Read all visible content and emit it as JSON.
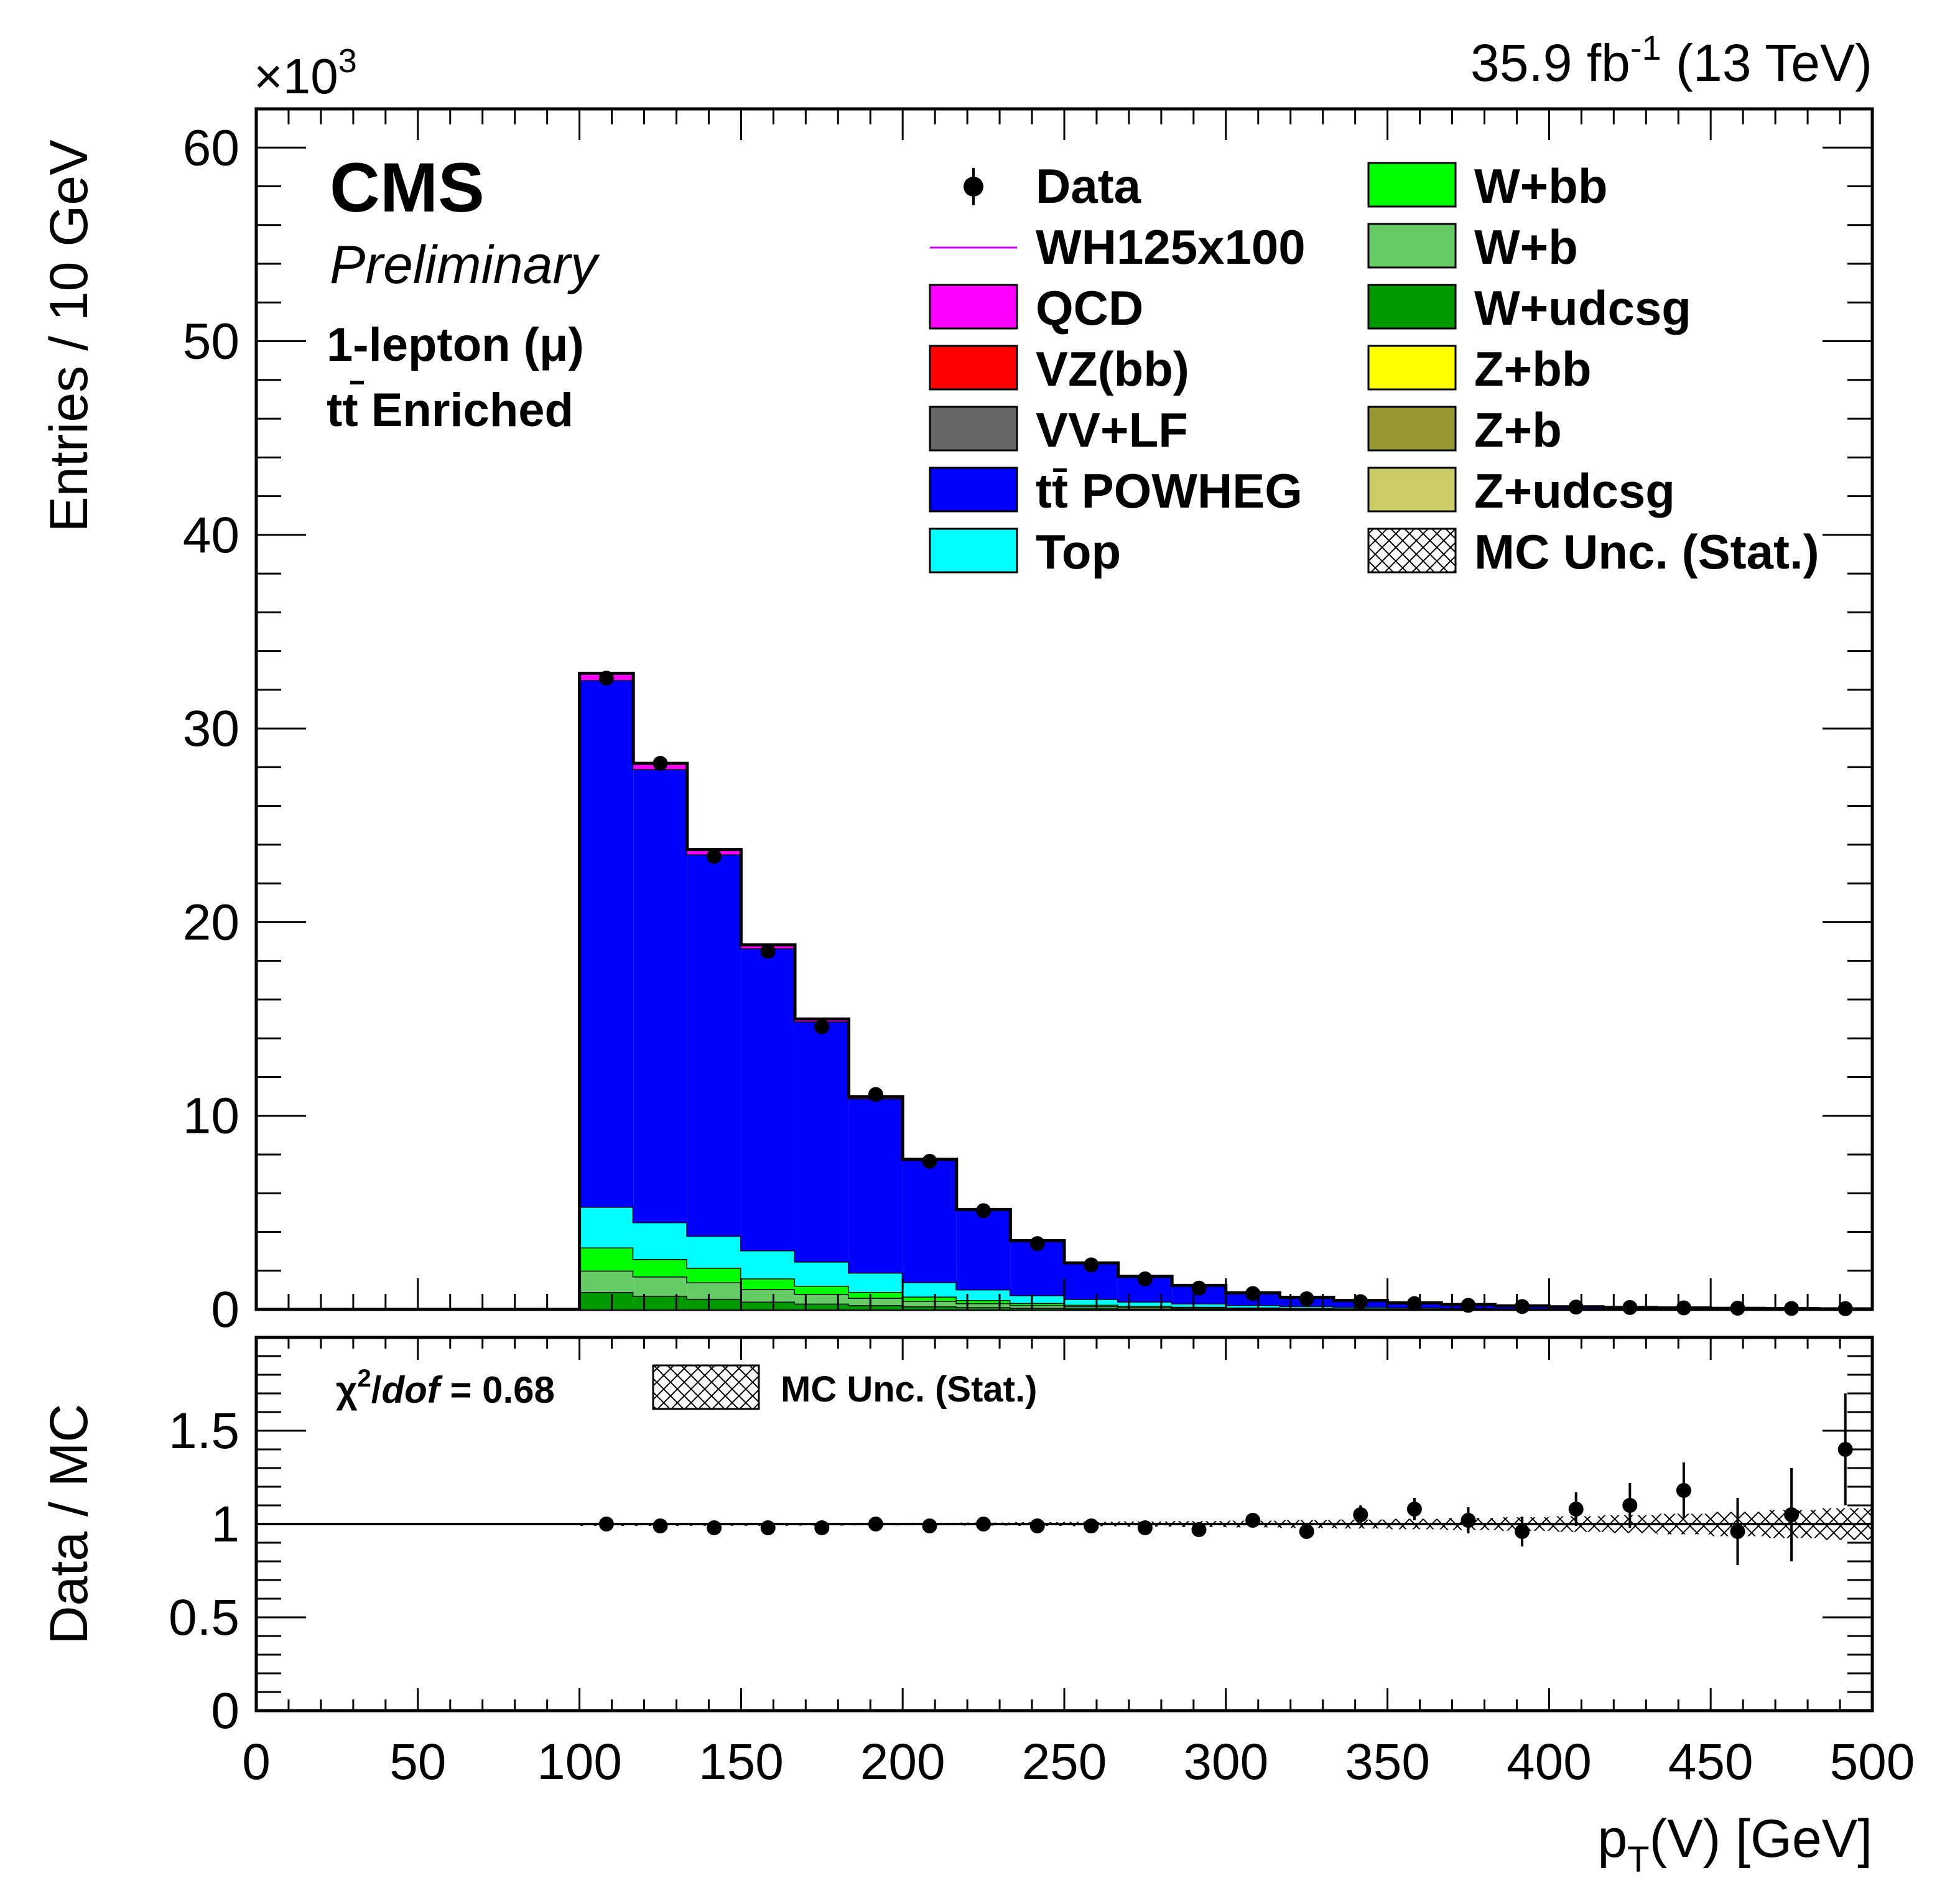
{
  "header": {
    "lumi_text": "35.9 fb",
    "lumi_sup": "-1",
    "energy_text": "(13 TeV)",
    "exponent_base": "×10",
    "exponent_sup": "3"
  },
  "labels": {
    "experiment": "CMS",
    "status": "Preliminary",
    "channel": "1-lepton (μ)",
    "region_t": "t",
    "region_tbar": "t",
    "region_rest": " Enriched"
  },
  "colors": {
    "qcd": "#ff00ff",
    "vzbb": "#ff0000",
    "vvlf": "#666666",
    "ttbar": "#0000ff",
    "top": "#00ffff",
    "wbb": "#00ff00",
    "wb": "#66cc66",
    "wudcsg": "#009900",
    "zbb": "#ffff00",
    "zb": "#999933",
    "zudcsg": "#cccc66",
    "signal_line": "#cc00ff"
  },
  "legend": {
    "col1": [
      {
        "label": "Data",
        "style": "marker",
        "color": "#000000"
      },
      {
        "label": "WH125x100",
        "style": "line",
        "color": "#cc00ff"
      },
      {
        "label": "QCD",
        "style": "box",
        "color": "#ff00ff"
      },
      {
        "label": "VZ(bb)",
        "style": "box",
        "color": "#ff0000"
      },
      {
        "label": "VV+LF",
        "style": "box",
        "color": "#666666"
      },
      {
        "label": "t",
        "label_bar": "t",
        "label_rest": " POWHEG",
        "style": "box",
        "color": "#0000ff"
      },
      {
        "label": "Top",
        "style": "box",
        "color": "#00ffff"
      }
    ],
    "col2": [
      {
        "label": "W+bb",
        "style": "box",
        "color": "#00ff00"
      },
      {
        "label": "W+b",
        "style": "box",
        "color": "#66cc66"
      },
      {
        "label": "W+udcsg",
        "style": "box",
        "color": "#009900"
      },
      {
        "label": "Z+bb",
        "style": "box",
        "color": "#ffff00"
      },
      {
        "label": "Z+b",
        "style": "box",
        "color": "#999933"
      },
      {
        "label": "Z+udcsg",
        "style": "box",
        "color": "#cccc66"
      },
      {
        "label": "MC Unc. (Stat.)",
        "style": "hatch",
        "color": "#000000"
      }
    ]
  },
  "ratio_panel": {
    "chi2_prefix": "χ",
    "chi2_sup": "2",
    "chi2_slash": "/",
    "chi2_dof": "dof",
    "chi2_value": " = 0.68",
    "unc_label": "MC Unc. (Stat.)"
  },
  "chart_data": [
    {
      "type": "bar",
      "panel": "main",
      "stacked": true,
      "xlabel_main": "p",
      "xlabel_sub": "T",
      "xlabel_rest": "(V) [GeV]",
      "ylabel": "Entries / 10 GeV",
      "y_multiplier": 1000,
      "xlim": [
        0,
        500
      ],
      "ylim": [
        0,
        62
      ],
      "x_ticks": [
        0,
        50,
        100,
        150,
        200,
        250,
        300,
        350,
        400,
        450,
        500
      ],
      "y_ticks": [
        0,
        10,
        20,
        30,
        40,
        50,
        60
      ],
      "bin_edges": [
        100,
        116.67,
        133.33,
        150,
        166.67,
        183.33,
        200,
        216.67,
        233.33,
        250,
        266.67,
        283.33,
        300,
        316.67,
        333.33,
        350,
        366.67,
        383.33,
        400,
        416.67,
        433.33,
        450,
        466.67,
        483.33,
        500
      ],
      "series": [
        {
          "name": "W+udcsg",
          "color": "#009900",
          "values": [
            0.9,
            0.7,
            0.55,
            0.4,
            0.3,
            0.22,
            0.16,
            0.12,
            0.08,
            0.06,
            0.045,
            0.035,
            0.025,
            0.02,
            0.015,
            0.01,
            0.008,
            0.006,
            0.005,
            0.004,
            0.003,
            0.002,
            0.002,
            0.001
          ]
        },
        {
          "name": "W+b",
          "color": "#66cc66",
          "values": [
            1.1,
            1.0,
            0.85,
            0.65,
            0.5,
            0.38,
            0.28,
            0.2,
            0.14,
            0.1,
            0.075,
            0.055,
            0.04,
            0.03,
            0.022,
            0.016,
            0.012,
            0.009,
            0.007,
            0.005,
            0.004,
            0.003,
            0.002,
            0.002
          ]
        },
        {
          "name": "W+bb",
          "color": "#00ff00",
          "values": [
            1.2,
            0.9,
            0.75,
            0.55,
            0.42,
            0.3,
            0.22,
            0.16,
            0.11,
            0.08,
            0.06,
            0.045,
            0.032,
            0.024,
            0.018,
            0.013,
            0.01,
            0.007,
            0.005,
            0.004,
            0.003,
            0.002,
            0.002,
            0.001
          ]
        },
        {
          "name": "Top",
          "color": "#00ffff",
          "values": [
            2.1,
            1.9,
            1.65,
            1.45,
            1.25,
            1.0,
            0.75,
            0.55,
            0.4,
            0.3,
            0.22,
            0.17,
            0.13,
            0.1,
            0.075,
            0.055,
            0.04,
            0.03,
            0.022,
            0.017,
            0.013,
            0.01,
            0.007,
            0.005
          ]
        },
        {
          "name": "tt POWHEG",
          "color": "#0000ff",
          "values": [
            27.2,
            23.4,
            19.7,
            15.6,
            12.4,
            9.0,
            6.3,
            4.1,
            2.8,
            1.85,
            1.3,
            0.93,
            0.63,
            0.45,
            0.33,
            0.24,
            0.18,
            0.13,
            0.095,
            0.07,
            0.053,
            0.04,
            0.03,
            0.023
          ]
        },
        {
          "name": "QCD",
          "color": "#ff00ff",
          "values": [
            0.35,
            0.3,
            0.25,
            0.18,
            0.13,
            0.09,
            0.05,
            0.03,
            0.02,
            0.01,
            0.008,
            0.006,
            0.004,
            0.003,
            0.002,
            0.002,
            0.001,
            0.001,
            0.001,
            0.0,
            0.0,
            0.0,
            0.0,
            0.0
          ]
        }
      ],
      "data_points": {
        "name": "Data",
        "y": [
          32.6,
          28.2,
          23.4,
          18.5,
          14.6,
          11.1,
          7.65,
          5.1,
          3.4,
          2.3,
          1.58,
          1.1,
          0.82,
          0.55,
          0.4,
          0.3,
          0.21,
          0.15,
          0.12,
          0.1,
          0.08,
          0.065,
          0.05,
          0.04
        ]
      }
    },
    {
      "type": "scatter",
      "panel": "ratio",
      "ylabel": "Data / MC",
      "xlim": [
        0,
        500
      ],
      "ylim": [
        0,
        2.0
      ],
      "x_ticks": [
        0,
        50,
        100,
        150,
        200,
        250,
        300,
        350,
        400,
        450,
        500
      ],
      "y_ticks": [
        0,
        0.5,
        1,
        1.5
      ],
      "y_tick_labels": [
        "0",
        "0.5",
        "1",
        "1.5"
      ],
      "bin_edges": [
        100,
        116.67,
        133.33,
        150,
        166.67,
        183.33,
        200,
        216.67,
        233.33,
        250,
        266.67,
        283.33,
        300,
        316.67,
        333.33,
        350,
        366.67,
        383.33,
        400,
        416.67,
        433.33,
        450,
        466.67,
        483.33,
        500
      ],
      "ratio": [
        1.0,
        0.99,
        0.98,
        0.98,
        0.98,
        1.0,
        0.99,
        1.0,
        0.99,
        0.99,
        0.98,
        0.97,
        1.02,
        0.96,
        1.05,
        1.08,
        1.02,
        0.96,
        1.08,
        1.1,
        1.18,
        0.96,
        1.05,
        1.4
      ],
      "ratio_err": [
        0.01,
        0.01,
        0.01,
        0.01,
        0.01,
        0.012,
        0.014,
        0.017,
        0.02,
        0.022,
        0.025,
        0.03,
        0.035,
        0.04,
        0.05,
        0.06,
        0.07,
        0.08,
        0.09,
        0.12,
        0.15,
        0.18,
        0.25,
        0.3
      ],
      "mc_unc": [
        0.003,
        0.003,
        0.004,
        0.004,
        0.005,
        0.006,
        0.007,
        0.008,
        0.01,
        0.012,
        0.014,
        0.016,
        0.018,
        0.021,
        0.024,
        0.028,
        0.032,
        0.036,
        0.042,
        0.048,
        0.055,
        0.065,
        0.075,
        0.085
      ],
      "reference_line": 1
    }
  ]
}
